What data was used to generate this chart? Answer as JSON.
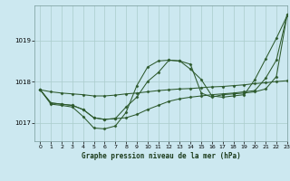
{
  "title": "Graphe pression niveau de la mer (hPa)",
  "bg_color": "#cce8f0",
  "grid_color": "#aacccc",
  "line_color": "#2d5a2d",
  "marker_color": "#2d5a2d",
  "xlim": [
    -0.5,
    23
  ],
  "ylim": [
    1016.55,
    1019.85
  ],
  "yticks": [
    1017,
    1018,
    1019
  ],
  "xticks": [
    0,
    1,
    2,
    3,
    4,
    5,
    6,
    7,
    8,
    9,
    10,
    11,
    12,
    13,
    14,
    15,
    16,
    17,
    18,
    19,
    20,
    21,
    22,
    23
  ],
  "series": [
    [
      1017.8,
      1017.75,
      1017.72,
      1017.7,
      1017.68,
      1017.65,
      1017.65,
      1017.67,
      1017.7,
      1017.72,
      1017.75,
      1017.78,
      1017.8,
      1017.82,
      1017.83,
      1017.85,
      1017.87,
      1017.88,
      1017.9,
      1017.92,
      1017.95,
      1017.97,
      1018.0,
      1018.02
    ],
    [
      1017.8,
      1017.45,
      1017.42,
      1017.38,
      1017.15,
      1016.87,
      1016.85,
      1016.92,
      1017.25,
      1017.9,
      1018.35,
      1018.5,
      1018.52,
      1018.5,
      1018.3,
      1018.05,
      1017.65,
      1017.62,
      1017.65,
      1017.68,
      1018.05,
      1018.55,
      1019.05,
      1019.6
    ],
    [
      1017.8,
      1017.48,
      1017.45,
      1017.42,
      1017.32,
      1017.12,
      1017.08,
      1017.1,
      1017.38,
      1017.62,
      1018.0,
      1018.22,
      1018.52,
      1018.5,
      1018.42,
      1017.72,
      1017.62,
      1017.68,
      1017.7,
      1017.72,
      1017.75,
      1017.82,
      1018.12,
      1019.62
    ],
    [
      1017.8,
      1017.48,
      1017.45,
      1017.42,
      1017.32,
      1017.12,
      1017.08,
      1017.1,
      1017.12,
      1017.2,
      1017.32,
      1017.42,
      1017.52,
      1017.58,
      1017.62,
      1017.65,
      1017.68,
      1017.7,
      1017.72,
      1017.75,
      1017.78,
      1018.08,
      1018.52,
      1019.62
    ]
  ]
}
